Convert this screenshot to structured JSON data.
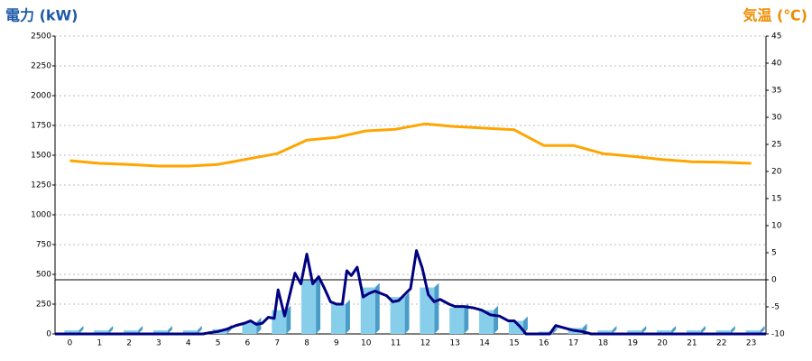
{
  "chart_data": {
    "type": "bar",
    "title_left": "電力 (kW)",
    "title_right": "気温 (℃)",
    "categories": [
      "0",
      "1",
      "2",
      "3",
      "4",
      "5",
      "6",
      "7",
      "8",
      "9",
      "10",
      "11",
      "12",
      "13",
      "14",
      "15",
      "16",
      "17",
      "18",
      "19",
      "20",
      "21",
      "22",
      "23"
    ],
    "ylim": [
      0,
      2500
    ],
    "yticks": [
      0,
      250,
      500,
      750,
      1000,
      1250,
      1500,
      1750,
      2000,
      2250,
      2500
    ],
    "y2lim": [
      -10,
      45
    ],
    "y2ticks": [
      -10,
      -5,
      0,
      5,
      10,
      15,
      20,
      25,
      30,
      35,
      40,
      45
    ],
    "grid": true,
    "series": [
      {
        "type": "bar",
        "color": "#87ceeb",
        "side_color": "#4a9cc8",
        "values": [
          30,
          30,
          30,
          30,
          30,
          40,
          100,
          200,
          450,
          250,
          390,
          310,
          390,
          220,
          200,
          110,
          20,
          50,
          30,
          30,
          30,
          30,
          30,
          30
        ]
      },
      {
        "type": "line",
        "color": "#000080",
        "x": [
          -0.5,
          4.5,
          4.7,
          5,
          5.3,
          5.6,
          5.9,
          6.1,
          6.3,
          6.5,
          6.7,
          6.9,
          7.03,
          7.25,
          7.6,
          7.8,
          8.0,
          8.2,
          8.4,
          8.6,
          8.8,
          9.0,
          9.2,
          9.35,
          9.5,
          9.7,
          9.9,
          10.1,
          10.3,
          10.5,
          10.7,
          10.9,
          11.1,
          11.3,
          11.5,
          11.7,
          11.9,
          12.1,
          12.3,
          12.5,
          12.8,
          13.0,
          13.3,
          13.6,
          13.9,
          14.2,
          14.5,
          14.8,
          15.0,
          15.2,
          15.4,
          16.2,
          16.4,
          16.7,
          17.0,
          17.3,
          17.6,
          23.5
        ],
        "values": [
          0,
          0,
          10,
          20,
          40,
          70,
          90,
          110,
          80,
          90,
          140,
          130,
          370,
          150,
          510,
          420,
          670,
          420,
          480,
          380,
          270,
          250,
          250,
          530,
          490,
          560,
          310,
          340,
          360,
          340,
          320,
          270,
          280,
          330,
          380,
          700,
          550,
          330,
          270,
          290,
          250,
          230,
          230,
          220,
          200,
          160,
          150,
          110,
          110,
          60,
          0,
          0,
          70,
          50,
          30,
          20,
          0,
          0
        ]
      },
      {
        "type": "line",
        "axis": "y2",
        "color": "#ffa500",
        "values": [
          22,
          21.5,
          21.3,
          21,
          21,
          21.3,
          22.3,
          23.3,
          25.8,
          26.3,
          27.5,
          27.8,
          28.8,
          28.3,
          28,
          27.7,
          24.8,
          24.8,
          23.3,
          22.8,
          22.2,
          21.8,
          21.7,
          21.5
        ]
      }
    ]
  }
}
